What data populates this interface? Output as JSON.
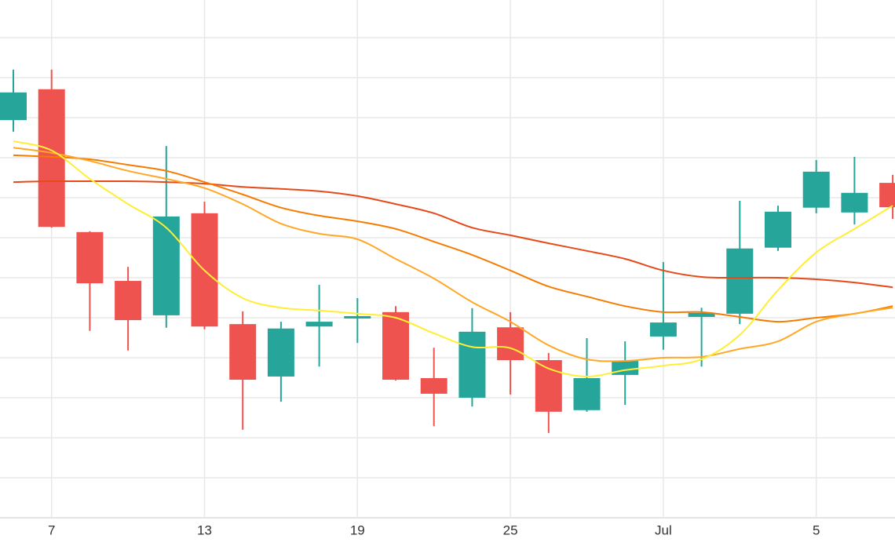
{
  "chart_data": {
    "type": "candlestick",
    "categories": [
      null,
      "7",
      null,
      null,
      null,
      "13",
      null,
      null,
      null,
      "19",
      null,
      null,
      null,
      "25",
      null,
      null,
      null,
      "Jul",
      null,
      null,
      null,
      "5",
      null,
      null
    ],
    "open": [
      99.4,
      107.1,
      71.4,
      59.2,
      50.6,
      76.1,
      48.4,
      35.3,
      47.8,
      49.8,
      51.4,
      34.9,
      30.0,
      47.6,
      39.4,
      26.9,
      35.7,
      45.3,
      50.2,
      51.0,
      67.5,
      77.5,
      76.3,
      83.7
    ],
    "high": [
      112.0,
      112.0,
      71.6,
      62.7,
      92.9,
      79.0,
      51.6,
      49.0,
      58.2,
      54.9,
      52.9,
      42.5,
      52.4,
      51.4,
      41.2,
      44.9,
      44.1,
      63.9,
      52.5,
      79.2,
      78.0,
      89.4,
      90.2,
      85.7
    ],
    "low": [
      96.5,
      72.5,
      46.7,
      41.8,
      47.5,
      47.1,
      22.0,
      29.0,
      37.8,
      43.7,
      34.3,
      22.9,
      27.8,
      30.8,
      21.2,
      26.5,
      28.2,
      42.0,
      37.8,
      48.4,
      66.7,
      76.1,
      73.3,
      74.7
    ],
    "close": [
      106.3,
      72.7,
      58.6,
      49.4,
      75.3,
      47.8,
      34.5,
      47.3,
      49.0,
      50.4,
      34.5,
      31.0,
      46.5,
      39.4,
      26.5,
      34.9,
      39.2,
      48.8,
      51.2,
      67.3,
      76.5,
      86.5,
      81.2,
      77.6
    ],
    "up_color": "#26a69a",
    "down_color": "#ef5350",
    "series": [
      {
        "color": "#e64a19",
        "values": [
          83.9,
          84.1,
          84.1,
          84.1,
          83.9,
          83.5,
          82.7,
          82.2,
          81.6,
          80.4,
          78.4,
          76.1,
          72.5,
          70.6,
          68.6,
          66.7,
          64.7,
          61.8,
          60.2,
          60.0,
          60.0,
          59.6,
          58.8,
          57.6
        ]
      },
      {
        "color": "#f57c00",
        "values": [
          90.6,
          90.2,
          89.6,
          88.2,
          86.7,
          83.9,
          80.8,
          77.5,
          75.5,
          74.1,
          72.2,
          69.0,
          65.7,
          61.8,
          57.8,
          55.3,
          52.9,
          51.4,
          51.4,
          50.2,
          49.0,
          50.0,
          51.0,
          52.9
        ]
      },
      {
        "color": "#ffa726",
        "values": [
          92.5,
          91.2,
          89.2,
          86.7,
          84.7,
          82.4,
          78.4,
          73.5,
          71.0,
          69.6,
          64.7,
          59.8,
          53.9,
          49.0,
          43.1,
          39.6,
          39.2,
          40.0,
          40.2,
          42.2,
          44.1,
          49.0,
          51.0,
          52.5
        ]
      },
      {
        "color": "#ffee33",
        "values": [
          94.1,
          91.8,
          84.7,
          78.4,
          72.5,
          61.8,
          54.9,
          52.5,
          51.8,
          51.0,
          50.0,
          46.1,
          42.7,
          42.4,
          37.3,
          35.3,
          36.9,
          38.0,
          39.6,
          45.7,
          56.9,
          66.3,
          72.2,
          78.0
        ]
      }
    ],
    "ylim": [
      0,
      129.4
    ],
    "yticks": [
      0,
      10,
      20,
      30,
      40,
      50,
      60,
      70,
      80,
      90,
      100,
      110,
      120
    ],
    "grid": true
  }
}
